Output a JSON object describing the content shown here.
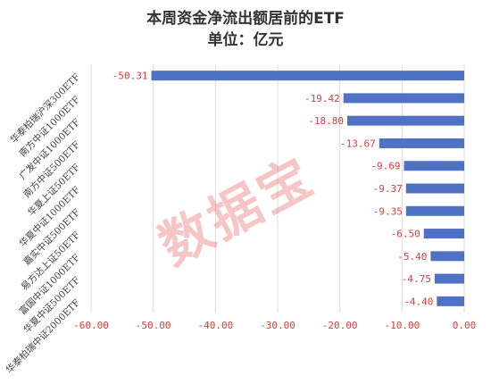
{
  "chart_data": {
    "type": "bar",
    "orientation": "horizontal",
    "title": "本周资金净流出额居前的ETF",
    "subtitle": "单位：亿元",
    "categories": [
      "华泰柏瑞沪深300ETF",
      "南方中证1000ETF",
      "广发中证1000ETF",
      "南方中证500ETF",
      "华夏上证50ETF",
      "华夏中证1000ETF",
      "嘉实中证500ETF",
      "易方达上证50ETF",
      "富国中证1000ETF",
      "华夏中证500ETF",
      "华泰柏瑞中证2000ETF"
    ],
    "values": [
      -50.31,
      -19.42,
      -18.8,
      -13.67,
      -9.69,
      -9.37,
      -9.35,
      -6.5,
      -5.4,
      -4.75,
      -4.4
    ],
    "value_labels": [
      "-50.31",
      "-19.42",
      "-18.80",
      "-13.67",
      "-9.69",
      "-9.37",
      "-9.35",
      "-6.50",
      "-5.40",
      "-4.75",
      "-4.40"
    ],
    "xlim": [
      -60,
      0
    ],
    "x_ticks": [
      -60,
      -50,
      -40,
      -30,
      -20,
      -10,
      0
    ],
    "x_tick_labels": [
      "-60.00",
      "-50.00",
      "-40.00",
      "-30.00",
      "-20.00",
      "-10.00",
      "0.00"
    ],
    "grid": "vertical",
    "bar_color": "#4F72C4",
    "label_color": "#E03A3A"
  },
  "watermark": "数据宝"
}
